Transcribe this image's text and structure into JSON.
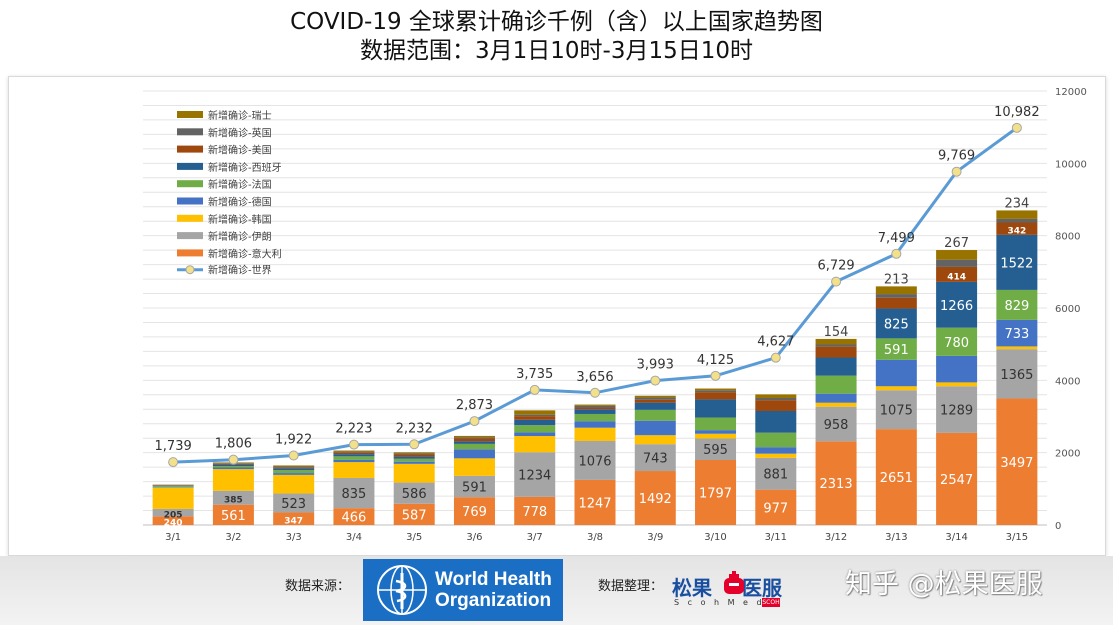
{
  "title": {
    "line1": "COVID-19 全球累计确诊千例（含）以上国家趋势图",
    "line2": "数据范围：3月1日10时-3月15日10时"
  },
  "chart_data": {
    "type": "bar",
    "stacked": true,
    "categories": [
      "3/1",
      "3/2",
      "3/3",
      "3/4",
      "3/5",
      "3/6",
      "3/7",
      "3/8",
      "3/9",
      "3/10",
      "3/11",
      "3/12",
      "3/13",
      "3/14",
      "3/15"
    ],
    "ylim": [
      0,
      12000
    ],
    "yticks": [
      0,
      2000,
      4000,
      6000,
      8000,
      10000,
      12000
    ],
    "grid": true,
    "legend_position": "top-left",
    "series": [
      {
        "name": "新增确诊-意大利",
        "color": "#ed7d31",
        "values": [
          240,
          561,
          347,
          466,
          587,
          769,
          778,
          1247,
          1492,
          1797,
          977,
          2313,
          2651,
          2547,
          3497
        ],
        "labels": [
          "240",
          "561",
          "347",
          "466",
          "587",
          "769",
          "778",
          "1247",
          "1492",
          "1797",
          "977",
          "2313",
          "2651",
          "2547",
          "3497"
        ]
      },
      {
        "name": "新增确诊-伊朗",
        "color": "#a5a5a5",
        "values": [
          205,
          385,
          523,
          835,
          586,
          591,
          1234,
          1076,
          743,
          595,
          881,
          958,
          1075,
          1289,
          1365
        ],
        "labels": [
          "205",
          "385",
          "523",
          "835",
          "586",
          "591",
          "1234",
          "1076",
          "743",
          "595",
          "881",
          "958",
          "1075",
          "1289",
          "1365"
        ]
      },
      {
        "name": "新增确诊-韩国",
        "color": "#ffc000",
        "values": [
          586,
          599,
          516,
          438,
          518,
          483,
          448,
          367,
          248,
          131,
          114,
          110,
          110,
          107,
          76
        ],
        "labels": []
      },
      {
        "name": "新增确诊-德国",
        "color": "#4472c4",
        "values": [
          15,
          45,
          50,
          60,
          60,
          250,
          100,
          180,
          400,
          100,
          180,
          250,
          733,
          733,
          733
        ],
        "labels": [
          "",
          "",
          "",
          "",
          "",
          "",
          "",
          "",
          "",
          "",
          "",
          "",
          "",
          "",
          "733"
        ]
      },
      {
        "name": "新增确诊-法国",
        "color": "#70ad47",
        "values": [
          30,
          40,
          80,
          100,
          80,
          150,
          200,
          200,
          300,
          350,
          400,
          500,
          591,
          780,
          829
        ],
        "labels": [
          "",
          "",
          "",
          "",
          "",
          "",
          "",
          "",
          "",
          "",
          "",
          "",
          "591",
          "780",
          "829"
        ]
      },
      {
        "name": "新增确诊-西班牙",
        "color": "#255e91",
        "values": [
          10,
          40,
          50,
          60,
          60,
          70,
          150,
          130,
          200,
          500,
          600,
          500,
          825,
          1266,
          1522
        ],
        "labels": [
          "",
          "",
          "",
          "",
          "",
          "",
          "",
          "",
          "",
          "",
          "",
          "",
          "825",
          "1266",
          "1522"
        ]
      },
      {
        "name": "新增确诊-美国",
        "color": "#9e480e",
        "values": [
          10,
          20,
          20,
          40,
          60,
          80,
          100,
          50,
          80,
          200,
          300,
          300,
          300,
          414,
          342
        ],
        "labels": [
          "",
          "",
          "",
          "",
          "",
          "",
          "",
          "",
          "",
          "",
          "",
          "",
          "",
          "414",
          "342"
        ]
      },
      {
        "name": "新增确诊-英国",
        "color": "#636363",
        "values": [
          10,
          20,
          30,
          30,
          30,
          30,
          40,
          50,
          60,
          50,
          60,
          60,
          100,
          200,
          100
        ],
        "labels": []
      },
      {
        "name": "新增确诊-瑞士",
        "color": "#997300",
        "values": [
          10,
          20,
          30,
          30,
          30,
          40,
          120,
          30,
          50,
          50,
          100,
          154,
          213,
          267,
          234
        ],
        "labels": [
          "",
          "",
          "",
          "",
          "",
          "",
          "",
          "",
          "",
          "",
          "",
          "154",
          "213",
          "267",
          "234"
        ]
      }
    ],
    "line": {
      "name": "新增确诊-世界",
      "color": "#5b9bd5",
      "values": [
        1739,
        1806,
        1922,
        2223,
        2232,
        2873,
        3735,
        3656,
        3993,
        4125,
        4627,
        6729,
        7499,
        9769,
        10982
      ],
      "labels": [
        "1,739",
        "1,806",
        "1,922",
        "2,223",
        "2,232",
        "2,873",
        "3,735",
        "3,656",
        "3,993",
        "4,125",
        "4,627",
        "6,729",
        "7,499",
        "9,769",
        "10,982"
      ]
    }
  },
  "footer": {
    "source_label": "数据来源：",
    "who_name_line1": "World Health",
    "who_name_line2": "Organization",
    "compiled_label": "数据整理：",
    "compiler_name_a": "松果",
    "compiler_name_b": "医服",
    "compiler_sub": "S c o h M e d",
    "compiler_tag": "SCOH",
    "watermark": "知乎 @松果医服"
  }
}
